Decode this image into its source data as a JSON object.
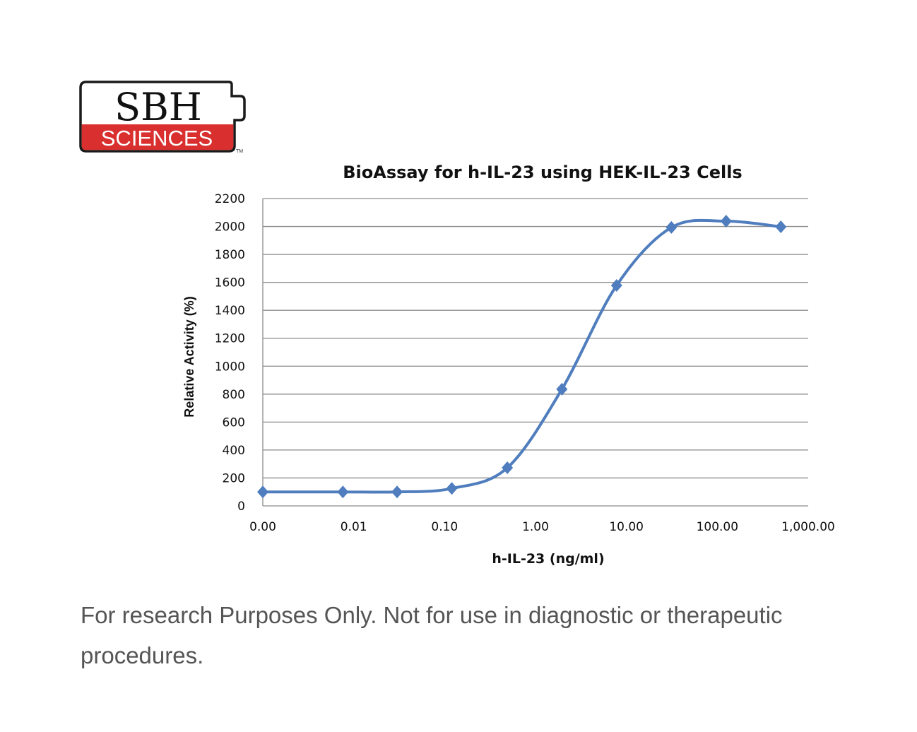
{
  "logo": {
    "top_text": "SBH",
    "bottom_text": "SCIENCES",
    "trademark": "TM",
    "border_color": "#1a1a1a",
    "band_color": "#d92f2f"
  },
  "chart_data": {
    "type": "line",
    "title": "BioAssay for h-IL-23 using HEK-IL-23 Cells",
    "xlabel": "h-IL-23 (ng/ml)",
    "ylabel": "Relative Activity (%)",
    "xscale": "log",
    "xlim": [
      0.001,
      1000
    ],
    "ylim": [
      0,
      2200
    ],
    "grid": true,
    "x_ticks": [
      0.001,
      0.01,
      0.1,
      1,
      10,
      100,
      1000
    ],
    "x_tick_labels": [
      "0.00",
      "0.01",
      "0.10",
      "1.00",
      "10.00",
      "100.00",
      "1,000.00"
    ],
    "y_ticks": [
      0,
      200,
      400,
      600,
      800,
      1000,
      1200,
      1400,
      1600,
      1800,
      2000,
      2200
    ],
    "y_tick_labels": [
      "0",
      "200",
      "400",
      "600",
      "800",
      "1000",
      "1200",
      "1400",
      "1600",
      "1800",
      "2000",
      "2200"
    ],
    "series": [
      {
        "name": "h-IL-23",
        "color": "#4f7dbd",
        "marker": "diamond",
        "x": [
          0.001,
          0.0076,
          0.03,
          0.12,
          0.49,
          1.95,
          7.8,
          31.25,
          125,
          500
        ],
        "y": [
          100,
          100,
          100,
          125,
          273,
          835,
          1578,
          1993,
          2038,
          1998
        ]
      }
    ]
  },
  "footer": {
    "text": "For research Purposes Only. Not for use in diagnostic or therapeutic procedures."
  }
}
